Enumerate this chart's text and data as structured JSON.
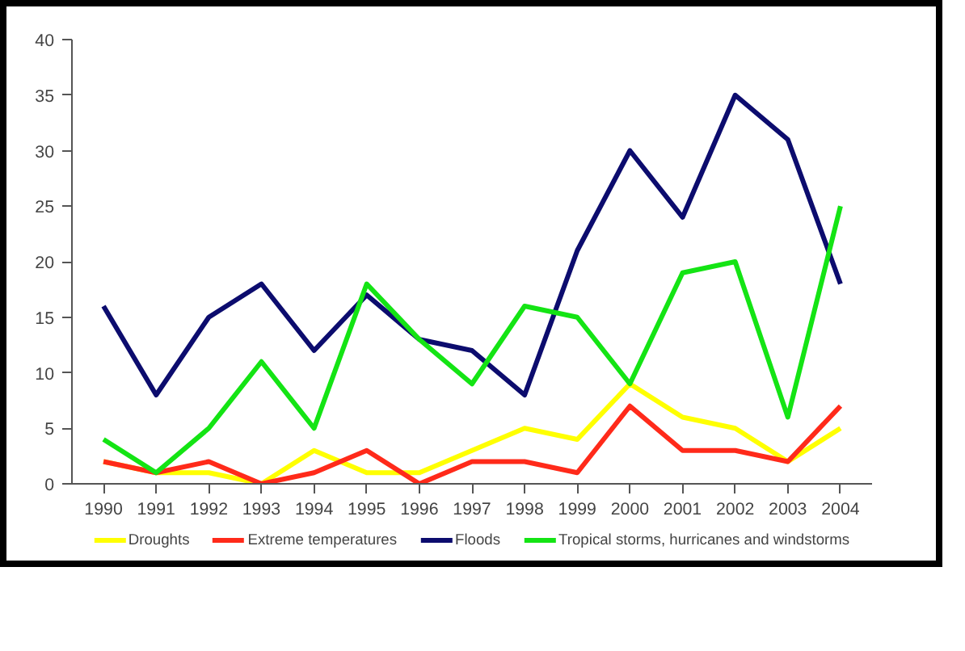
{
  "chart_data": {
    "type": "line",
    "categories": [
      "1990",
      "1991",
      "1992",
      "1993",
      "1994",
      "1995",
      "1996",
      "1997",
      "1998",
      "1999",
      "2000",
      "2001",
      "2002",
      "2003",
      "2004"
    ],
    "series": [
      {
        "name": "Droughts",
        "color": "#ffff00",
        "values": [
          2,
          1,
          1,
          0,
          3,
          1,
          1,
          3,
          5,
          4,
          9,
          6,
          5,
          2,
          5
        ]
      },
      {
        "name": "Extreme temperatures",
        "color": "#ff2a1a",
        "values": [
          2,
          1,
          2,
          0,
          1,
          3,
          0,
          2,
          2,
          1,
          7,
          3,
          3,
          2,
          7
        ]
      },
      {
        "name": "Floods",
        "color": "#0c0c6e",
        "values": [
          16,
          8,
          15,
          18,
          12,
          17,
          13,
          12,
          8,
          21,
          30,
          24,
          35,
          31,
          18
        ]
      },
      {
        "name": "Tropical storms, hurricanes and windstorms",
        "color": "#14e414",
        "values": [
          4,
          1,
          5,
          11,
          5,
          18,
          13,
          9,
          16,
          15,
          9,
          19,
          20,
          6,
          25
        ]
      }
    ],
    "ylim": [
      0,
      40
    ],
    "yticks": [
      0,
      5,
      10,
      15,
      20,
      25,
      30,
      35,
      40
    ],
    "legend": "bottom",
    "grid": false,
    "marker": "none",
    "line_style": "solid"
  }
}
